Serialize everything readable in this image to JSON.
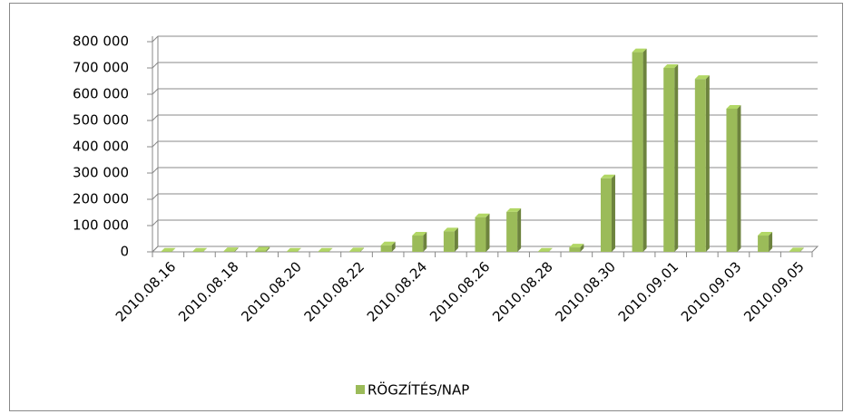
{
  "chart_data": {
    "type": "bar",
    "categories": [
      "2010.08.16",
      null,
      "2010.08.18",
      null,
      "2010.08.20",
      null,
      "2010.08.22",
      null,
      "2010.08.24",
      null,
      "2010.08.26",
      null,
      "2010.08.28",
      null,
      "2010.08.30",
      null,
      "2010.09.01",
      null,
      "2010.09.03",
      null,
      "2010.09.05"
    ],
    "series": [
      {
        "name": "RÖGZÍTÉS/NAP",
        "color": "#9bbb59",
        "values": [
          1000,
          1000,
          3000,
          5000,
          1000,
          1000,
          2000,
          25000,
          62000,
          78000,
          132000,
          152000,
          1000,
          17000,
          280000,
          760000,
          700000,
          658000,
          545000,
          62000,
          2000
        ]
      }
    ],
    "ylim": [
      0,
      800000
    ],
    "yticks": [
      0,
      {
        "value": 100000,
        "label": "100 000"
      },
      {
        "value": 200000,
        "label": "200 000"
      },
      {
        "value": 300000,
        "label": "300 000"
      },
      {
        "value": 400000,
        "label": "400 000"
      },
      {
        "value": 500000,
        "label": "500 000"
      },
      {
        "value": 600000,
        "label": "600 000"
      },
      {
        "value": 700000,
        "label": "700 000"
      },
      {
        "value": 800000,
        "label": "800 000"
      }
    ],
    "grid": true,
    "legend": "bottom"
  }
}
